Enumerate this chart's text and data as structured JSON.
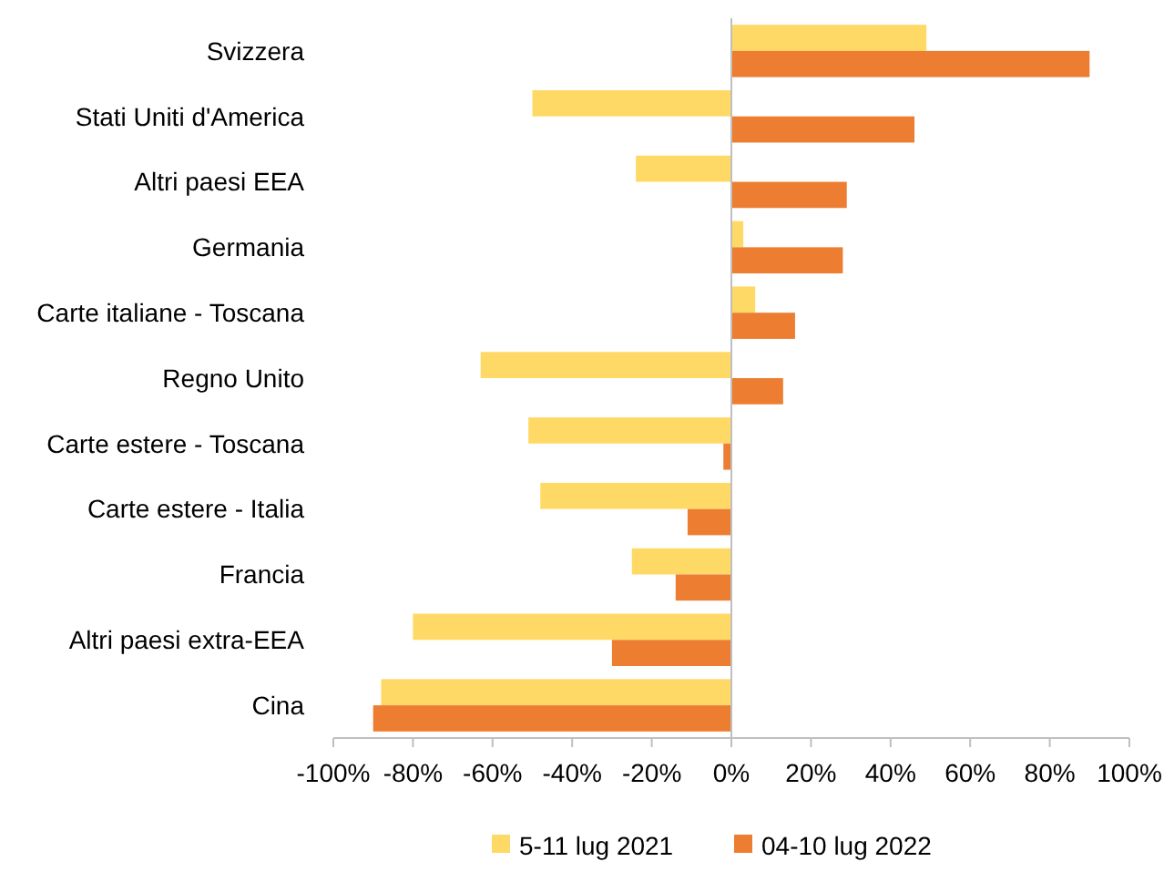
{
  "chart_data": {
    "type": "bar",
    "orientation": "horizontal",
    "categories": [
      "Svizzera",
      "Stati Uniti d'America",
      "Altri paesi EEA",
      "Germania",
      "Carte italiane - Toscana",
      "Regno Unito",
      "Carte estere - Toscana",
      "Carte estere - Italia",
      "Francia",
      "Altri paesi extra-EEA",
      "Cina"
    ],
    "series": [
      {
        "name": "5-11 lug 2021",
        "color": "#ffd966",
        "values": [
          49,
          -50,
          -24,
          3,
          6,
          -63,
          -51,
          -48,
          -25,
          -80,
          -88
        ]
      },
      {
        "name": "04-10 lug 2022",
        "color": "#ed7d31",
        "values": [
          90,
          46,
          29,
          28,
          16,
          13,
          -2,
          -11,
          -14,
          -30,
          -90
        ]
      }
    ],
    "xlim": [
      -100,
      100
    ],
    "xticks": [
      {
        "value": -100,
        "label": "-100%"
      },
      {
        "value": -80,
        "label": "-80%"
      },
      {
        "value": -60,
        "label": "-60%"
      },
      {
        "value": -40,
        "label": "-40%"
      },
      {
        "value": -20,
        "label": "-20%"
      },
      {
        "value": 0,
        "label": "0%"
      },
      {
        "value": 20,
        "label": "20%"
      },
      {
        "value": 40,
        "label": "40%"
      },
      {
        "value": 60,
        "label": "60%"
      },
      {
        "value": 80,
        "label": "80%"
      },
      {
        "value": 100,
        "label": "100%"
      }
    ],
    "legend": "bottom"
  }
}
